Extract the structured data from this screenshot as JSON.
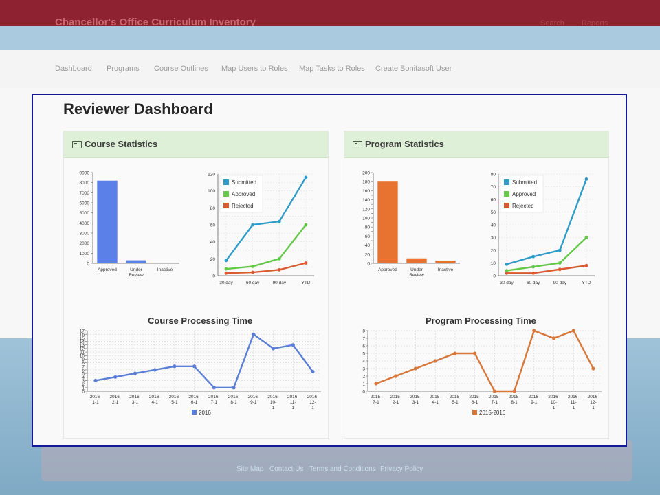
{
  "header": {
    "brand": "Chancellor's Office Curriculum Inventory",
    "search": "Search",
    "reports": "Reports"
  },
  "nav": {
    "items": [
      "Dashboard",
      "Programs",
      "Course Outlines",
      "Map Users to Roles",
      "Map Tasks to Roles",
      "Create Bonitasoft User"
    ]
  },
  "page": {
    "title": "Reviewer Dashboard"
  },
  "footer": {
    "links": [
      "Site Map",
      "Contact Us",
      "Terms and Conditions",
      "Privacy Policy"
    ]
  },
  "panels": {
    "course": {
      "heading": "Course Statistics",
      "processing_title": "Course Processing Time"
    },
    "program": {
      "heading": "Program Statistics",
      "processing_title": "Program Processing Time"
    }
  },
  "colors": {
    "course_bar": "#5b80e8",
    "program_bar": "#e87230",
    "submitted": "#2e9cc7",
    "approved": "#66c84a",
    "rejected": "#d95b30",
    "course_line": "#5b7fd6",
    "program_line": "#d8773a"
  },
  "chart_data": [
    {
      "id": "course_status",
      "type": "bar",
      "categories": [
        "Approved",
        "Under Review",
        "Inactive"
      ],
      "values": [
        8200,
        300,
        0
      ],
      "ylim": [
        0,
        9000
      ],
      "yticks": [
        0,
        1000,
        2000,
        3000,
        4000,
        5000,
        6000,
        7000,
        8000,
        9000
      ]
    },
    {
      "id": "course_trend",
      "type": "line",
      "categories": [
        "30 day",
        "60 day",
        "90 day",
        "YTD"
      ],
      "ylim": [
        0,
        120
      ],
      "yticks": [
        0,
        10,
        20,
        30,
        40,
        50,
        60,
        70,
        80,
        90,
        100,
        110,
        120
      ],
      "yticklabels": [
        0,
        20,
        40,
        60,
        80,
        100,
        120
      ],
      "series": [
        {
          "name": "Submitted",
          "values": [
            18,
            60,
            64,
            116
          ]
        },
        {
          "name": "Approved",
          "values": [
            8,
            11,
            20,
            60
          ]
        },
        {
          "name": "Rejected",
          "values": [
            3,
            4,
            7,
            15
          ]
        }
      ],
      "legend": "top-left"
    },
    {
      "id": "program_status",
      "type": "bar",
      "categories": [
        "Approved",
        "Under Review",
        "Inactive"
      ],
      "values": [
        180,
        11,
        6
      ],
      "ylim": [
        0,
        200
      ],
      "yticks": [
        0,
        10,
        20,
        30,
        40,
        50,
        60,
        70,
        80,
        90,
        100,
        110,
        120,
        130,
        140,
        150,
        160,
        170,
        180,
        190,
        200
      ],
      "yticklabels": [
        0,
        20,
        40,
        60,
        80,
        100,
        120,
        140,
        160,
        180,
        200
      ]
    },
    {
      "id": "program_trend",
      "type": "line",
      "categories": [
        "30 day",
        "60 day",
        "90 day",
        "YTD"
      ],
      "ylim": [
        0,
        80
      ],
      "yticks": [
        0,
        10,
        20,
        30,
        40,
        50,
        60,
        70,
        80
      ],
      "series": [
        {
          "name": "Submitted",
          "values": [
            9,
            15,
            20,
            76
          ]
        },
        {
          "name": "Approved",
          "values": [
            4,
            7,
            10,
            30
          ]
        },
        {
          "name": "Rejected",
          "values": [
            2,
            2,
            5,
            8
          ]
        }
      ],
      "legend": "top-left"
    },
    {
      "id": "course_processing",
      "type": "line",
      "title": "Course Processing Time",
      "categories": [
        "2016-1-1",
        "2016-2-1",
        "2016-3-1",
        "2016-4-1",
        "2016-5-1",
        "2016-6-1",
        "2016-7-1",
        "2016-8-1",
        "2016-9-1",
        "2016-10-1",
        "2016-11-1",
        "2016-12-1"
      ],
      "series": [
        {
          "name": "2016",
          "values": [
            3,
            4,
            5,
            6,
            7,
            7,
            1,
            1,
            16,
            12,
            13,
            5.5
          ]
        }
      ],
      "ylim": [
        0,
        17
      ],
      "yticks": [
        0,
        1,
        2,
        3,
        4,
        5,
        6,
        7,
        8,
        9,
        10,
        11,
        12,
        13,
        14,
        15,
        16,
        17
      ],
      "legend": "bottom"
    },
    {
      "id": "program_processing",
      "type": "line",
      "title": "Program Processing Time",
      "categories": [
        "2015-7-1",
        "2015-2-1",
        "2015-3-1",
        "2015-4-1",
        "2015-5-1",
        "2015-6-1",
        "2015-7-1",
        "2015-8-1",
        "2016-9-1",
        "2016-10-1",
        "2016-11-1",
        "2016-12-1"
      ],
      "series": [
        {
          "name": "2015-2016",
          "values": [
            1,
            2,
            3,
            4,
            5,
            5,
            0,
            0,
            8,
            7,
            8,
            3
          ]
        }
      ],
      "ylim": [
        0,
        8
      ],
      "yticks": [
        0,
        1,
        2,
        3,
        4,
        5,
        6,
        7,
        8
      ],
      "legend": "bottom"
    }
  ]
}
